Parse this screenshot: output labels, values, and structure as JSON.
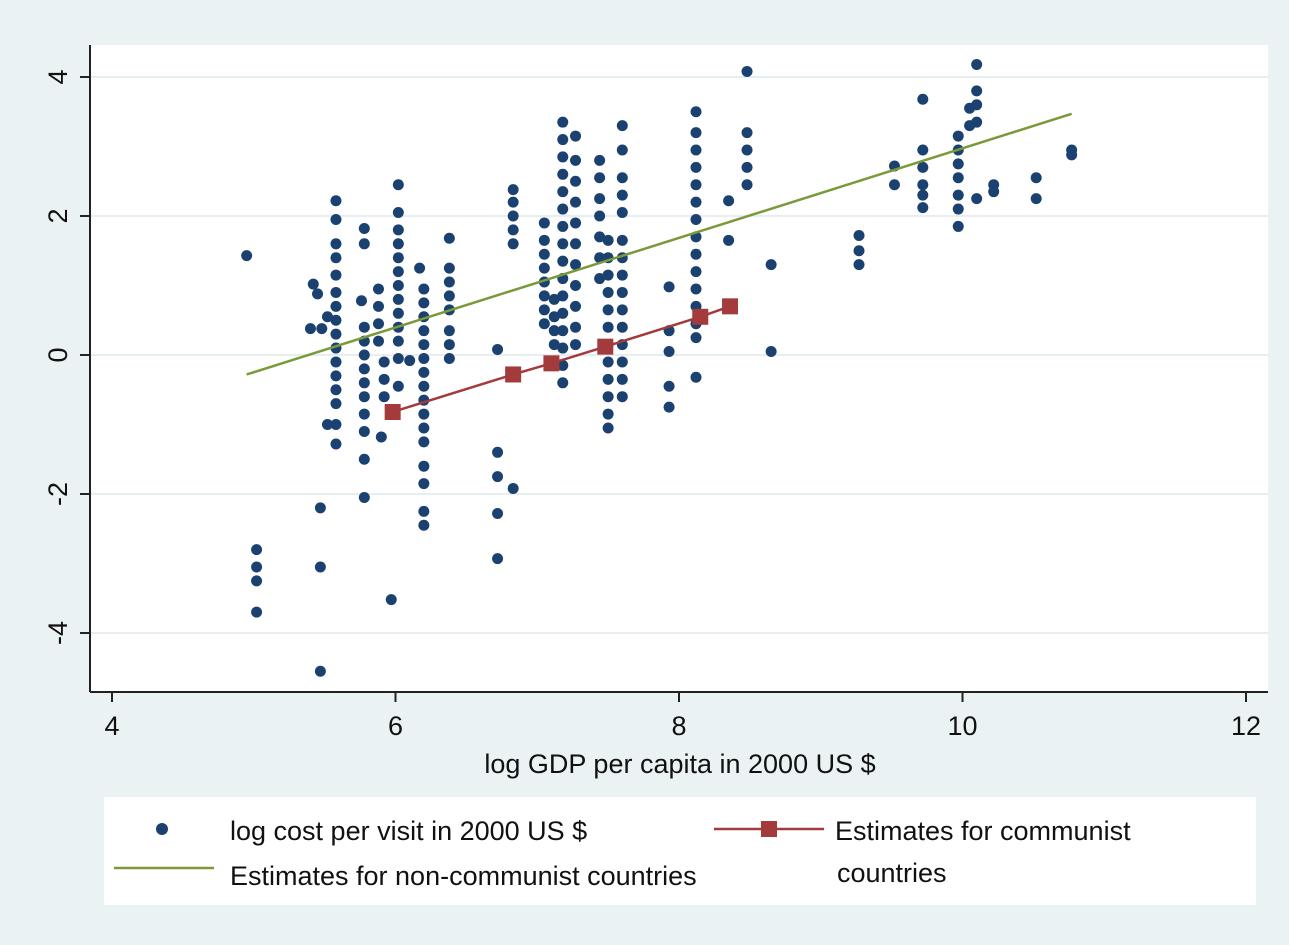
{
  "chart_data": {
    "type": "scatter",
    "title": "",
    "xlabel": "log GDP per capita in 2000 US $",
    "ylabel": "",
    "xlim": [
      4,
      12
    ],
    "ylim": [
      -4.8,
      4.4
    ],
    "xticks": [
      4,
      6,
      8,
      10,
      12
    ],
    "xtick_labels": [
      "4",
      "6",
      "8",
      "10",
      "12"
    ],
    "yticks": [
      -4,
      -2,
      0,
      2,
      4
    ],
    "ytick_labels": [
      "-4",
      "-2",
      "0",
      "2",
      "4"
    ],
    "grid": "horizontal",
    "colors": {
      "scatter": "#1a4170",
      "noncommunist": "#7a9a3a",
      "communist": "#a33a3c",
      "plot_bg": "#ffffff",
      "outer_bg": "#eaf2f3"
    },
    "legend": {
      "placement": "bottom",
      "scatter_label": "log cost per visit in 2000 US $",
      "communist_label_line1": "Estimates for communist",
      "communist_label_line2": "countries",
      "noncommunist_label": "Estimates for non-communist countries"
    },
    "series": [
      {
        "name": "log cost per visit in 2000 US $",
        "kind": "scatter",
        "points": [
          [
            4.95,
            1.43
          ],
          [
            5.02,
            -2.8
          ],
          [
            5.02,
            -3.05
          ],
          [
            5.02,
            -3.25
          ],
          [
            5.02,
            -3.7
          ],
          [
            5.42,
            1.02
          ],
          [
            5.45,
            0.88
          ],
          [
            5.47,
            -2.2
          ],
          [
            5.47,
            -3.05
          ],
          [
            5.47,
            -4.55
          ],
          [
            5.4,
            0.38
          ],
          [
            5.48,
            0.38
          ],
          [
            5.52,
            0.55
          ],
          [
            5.52,
            -1.0
          ],
          [
            5.58,
            2.22
          ],
          [
            5.58,
            1.95
          ],
          [
            5.58,
            1.6
          ],
          [
            5.58,
            1.4
          ],
          [
            5.58,
            1.15
          ],
          [
            5.58,
            0.9
          ],
          [
            5.58,
            0.7
          ],
          [
            5.58,
            0.5
          ],
          [
            5.58,
            0.3
          ],
          [
            5.58,
            0.1
          ],
          [
            5.58,
            -0.1
          ],
          [
            5.58,
            -0.3
          ],
          [
            5.58,
            -0.5
          ],
          [
            5.58,
            -0.7
          ],
          [
            5.58,
            -1.0
          ],
          [
            5.58,
            -1.28
          ],
          [
            5.76,
            0.78
          ],
          [
            5.78,
            1.82
          ],
          [
            5.78,
            1.6
          ],
          [
            5.78,
            0.4
          ],
          [
            5.78,
            0.2
          ],
          [
            5.78,
            0.0
          ],
          [
            5.78,
            -0.2
          ],
          [
            5.78,
            -0.4
          ],
          [
            5.78,
            -0.6
          ],
          [
            5.78,
            -0.85
          ],
          [
            5.78,
            -1.1
          ],
          [
            5.78,
            -1.5
          ],
          [
            5.78,
            -2.05
          ],
          [
            5.88,
            0.95
          ],
          [
            5.88,
            0.7
          ],
          [
            5.88,
            0.45
          ],
          [
            5.88,
            0.2
          ],
          [
            5.92,
            -0.1
          ],
          [
            5.92,
            -0.35
          ],
          [
            5.92,
            -0.6
          ],
          [
            5.9,
            -1.18
          ],
          [
            5.97,
            -3.52
          ],
          [
            6.02,
            2.45
          ],
          [
            6.02,
            2.05
          ],
          [
            6.02,
            1.8
          ],
          [
            6.02,
            1.6
          ],
          [
            6.02,
            1.4
          ],
          [
            6.02,
            1.2
          ],
          [
            6.02,
            1.0
          ],
          [
            6.02,
            0.8
          ],
          [
            6.02,
            0.6
          ],
          [
            6.02,
            0.4
          ],
          [
            6.02,
            0.2
          ],
          [
            6.02,
            -0.05
          ],
          [
            6.02,
            -0.45
          ],
          [
            6.1,
            -0.08
          ],
          [
            6.17,
            1.25
          ],
          [
            6.2,
            0.95
          ],
          [
            6.2,
            0.75
          ],
          [
            6.2,
            0.55
          ],
          [
            6.2,
            0.35
          ],
          [
            6.2,
            0.15
          ],
          [
            6.2,
            -0.05
          ],
          [
            6.2,
            -0.25
          ],
          [
            6.2,
            -0.45
          ],
          [
            6.2,
            -0.65
          ],
          [
            6.2,
            -0.85
          ],
          [
            6.2,
            -1.05
          ],
          [
            6.2,
            -1.25
          ],
          [
            6.2,
            -1.6
          ],
          [
            6.2,
            -1.85
          ],
          [
            6.2,
            -2.25
          ],
          [
            6.2,
            -2.45
          ],
          [
            6.38,
            1.68
          ],
          [
            6.38,
            1.25
          ],
          [
            6.38,
            1.05
          ],
          [
            6.38,
            0.85
          ],
          [
            6.38,
            0.65
          ],
          [
            6.38,
            0.35
          ],
          [
            6.38,
            0.15
          ],
          [
            6.38,
            -0.05
          ],
          [
            6.72,
            0.08
          ],
          [
            6.72,
            -1.4
          ],
          [
            6.72,
            -1.75
          ],
          [
            6.72,
            -2.28
          ],
          [
            6.72,
            -2.93
          ],
          [
            6.83,
            -1.92
          ],
          [
            6.83,
            2.38
          ],
          [
            6.83,
            2.2
          ],
          [
            6.83,
            2.0
          ],
          [
            6.83,
            1.8
          ],
          [
            6.83,
            1.6
          ],
          [
            7.05,
            1.9
          ],
          [
            7.05,
            1.65
          ],
          [
            7.05,
            1.45
          ],
          [
            7.05,
            1.25
          ],
          [
            7.05,
            1.05
          ],
          [
            7.05,
            0.85
          ],
          [
            7.05,
            0.65
          ],
          [
            7.05,
            0.45
          ],
          [
            7.12,
            0.8
          ],
          [
            7.12,
            0.55
          ],
          [
            7.12,
            0.35
          ],
          [
            7.12,
            0.15
          ],
          [
            7.18,
            3.35
          ],
          [
            7.18,
            3.1
          ],
          [
            7.18,
            2.85
          ],
          [
            7.18,
            2.6
          ],
          [
            7.18,
            2.35
          ],
          [
            7.18,
            2.1
          ],
          [
            7.18,
            1.85
          ],
          [
            7.18,
            1.6
          ],
          [
            7.18,
            1.35
          ],
          [
            7.18,
            1.1
          ],
          [
            7.18,
            0.85
          ],
          [
            7.18,
            0.6
          ],
          [
            7.18,
            0.35
          ],
          [
            7.18,
            0.1
          ],
          [
            7.18,
            -0.15
          ],
          [
            7.18,
            -0.4
          ],
          [
            7.27,
            3.15
          ],
          [
            7.27,
            2.8
          ],
          [
            7.27,
            2.5
          ],
          [
            7.27,
            2.2
          ],
          [
            7.27,
            1.9
          ],
          [
            7.27,
            1.6
          ],
          [
            7.27,
            1.3
          ],
          [
            7.27,
            1.0
          ],
          [
            7.27,
            0.7
          ],
          [
            7.27,
            0.4
          ],
          [
            7.27,
            0.15
          ],
          [
            7.44,
            2.8
          ],
          [
            7.44,
            2.55
          ],
          [
            7.44,
            2.25
          ],
          [
            7.44,
            2.0
          ],
          [
            7.44,
            1.7
          ],
          [
            7.44,
            1.4
          ],
          [
            7.44,
            1.1
          ],
          [
            7.5,
            1.65
          ],
          [
            7.5,
            1.4
          ],
          [
            7.5,
            1.15
          ],
          [
            7.5,
            0.9
          ],
          [
            7.5,
            0.65
          ],
          [
            7.5,
            0.4
          ],
          [
            7.5,
            0.15
          ],
          [
            7.5,
            -0.1
          ],
          [
            7.5,
            -0.35
          ],
          [
            7.5,
            -0.6
          ],
          [
            7.5,
            -0.85
          ],
          [
            7.5,
            -1.05
          ],
          [
            7.6,
            3.3
          ],
          [
            7.6,
            2.95
          ],
          [
            7.6,
            2.55
          ],
          [
            7.6,
            2.3
          ],
          [
            7.6,
            2.05
          ],
          [
            7.6,
            1.65
          ],
          [
            7.6,
            1.4
          ],
          [
            7.6,
            1.15
          ],
          [
            7.6,
            0.9
          ],
          [
            7.6,
            0.65
          ],
          [
            7.6,
            0.4
          ],
          [
            7.6,
            0.15
          ],
          [
            7.6,
            -0.1
          ],
          [
            7.6,
            -0.35
          ],
          [
            7.6,
            -0.6
          ],
          [
            7.93,
            0.98
          ],
          [
            7.93,
            0.35
          ],
          [
            7.93,
            0.05
          ],
          [
            7.93,
            -0.45
          ],
          [
            7.93,
            -0.75
          ],
          [
            8.12,
            3.5
          ],
          [
            8.12,
            3.2
          ],
          [
            8.12,
            2.95
          ],
          [
            8.12,
            2.7
          ],
          [
            8.12,
            2.45
          ],
          [
            8.12,
            2.2
          ],
          [
            8.12,
            1.95
          ],
          [
            8.12,
            1.7
          ],
          [
            8.12,
            1.45
          ],
          [
            8.12,
            1.2
          ],
          [
            8.12,
            0.95
          ],
          [
            8.12,
            0.7
          ],
          [
            8.12,
            0.45
          ],
          [
            8.12,
            0.25
          ],
          [
            8.12,
            -0.32
          ],
          [
            8.35,
            2.22
          ],
          [
            8.35,
            1.65
          ],
          [
            8.48,
            4.08
          ],
          [
            8.48,
            3.2
          ],
          [
            8.48,
            2.95
          ],
          [
            8.48,
            2.7
          ],
          [
            8.48,
            2.45
          ],
          [
            8.65,
            1.3
          ],
          [
            8.65,
            0.05
          ],
          [
            9.27,
            1.72
          ],
          [
            9.27,
            1.5
          ],
          [
            9.27,
            1.3
          ],
          [
            9.52,
            2.72
          ],
          [
            9.52,
            2.45
          ],
          [
            9.72,
            3.68
          ],
          [
            9.72,
            2.95
          ],
          [
            9.72,
            2.7
          ],
          [
            9.72,
            2.45
          ],
          [
            9.72,
            2.3
          ],
          [
            9.72,
            2.12
          ],
          [
            9.97,
            3.15
          ],
          [
            9.97,
            2.95
          ],
          [
            9.97,
            2.75
          ],
          [
            9.97,
            2.55
          ],
          [
            9.97,
            2.3
          ],
          [
            9.97,
            2.1
          ],
          [
            9.97,
            1.85
          ],
          [
            10.05,
            3.3
          ],
          [
            10.05,
            3.55
          ],
          [
            10.1,
            4.18
          ],
          [
            10.1,
            3.8
          ],
          [
            10.1,
            3.6
          ],
          [
            10.1,
            3.35
          ],
          [
            10.1,
            2.25
          ],
          [
            10.22,
            2.45
          ],
          [
            10.22,
            2.35
          ],
          [
            10.52,
            2.55
          ],
          [
            10.52,
            2.25
          ],
          [
            10.77,
            2.95
          ],
          [
            10.77,
            2.88
          ]
        ]
      },
      {
        "name": "Estimates for non-communist countries",
        "kind": "line",
        "points": [
          [
            4.95,
            -0.28
          ],
          [
            10.77,
            3.47
          ]
        ]
      },
      {
        "name": "Estimates for communist countries",
        "kind": "line-markers",
        "points": [
          [
            5.98,
            -0.82
          ],
          [
            6.83,
            -0.28
          ],
          [
            7.1,
            -0.12
          ],
          [
            7.48,
            0.12
          ],
          [
            8.15,
            0.55
          ],
          [
            8.36,
            0.7
          ]
        ]
      }
    ]
  }
}
